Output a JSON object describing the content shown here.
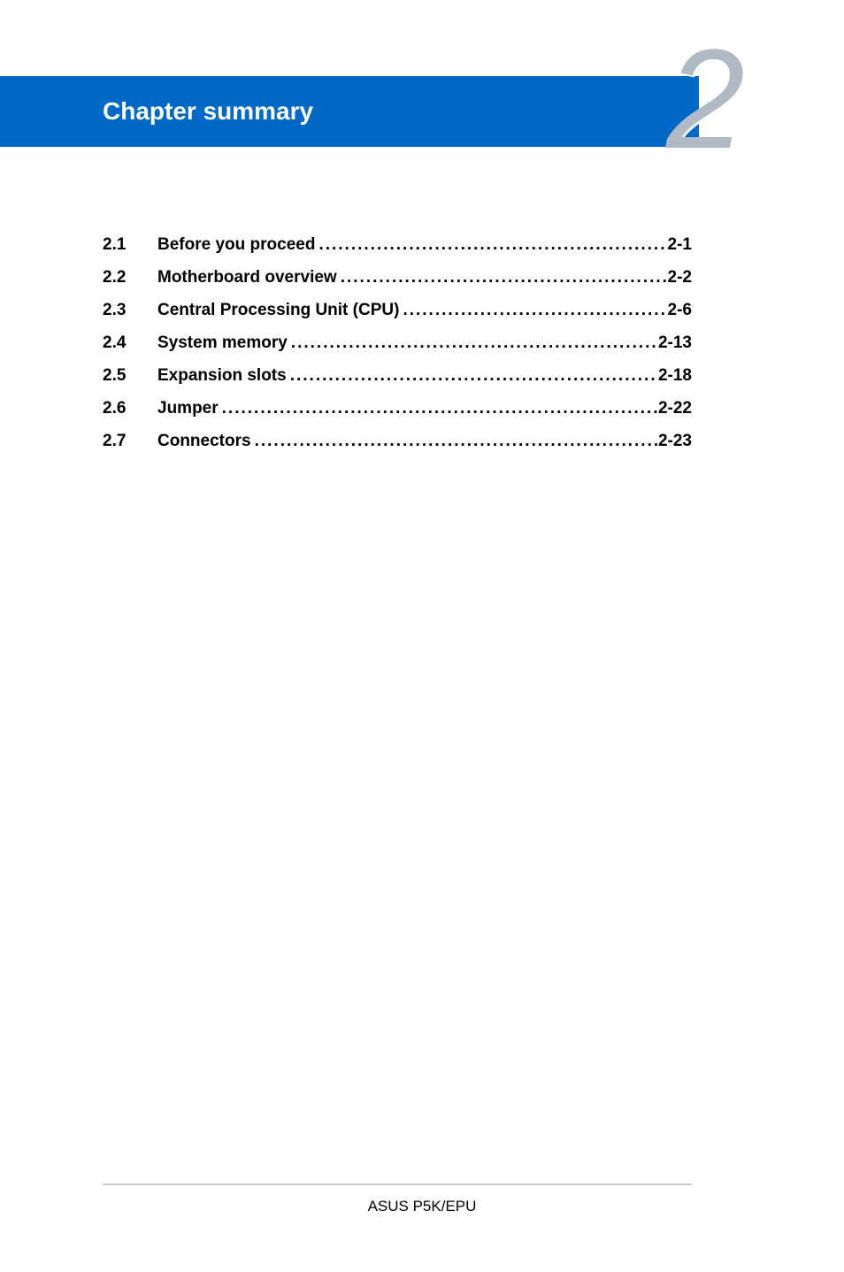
{
  "header": {
    "title": "Chapter summary",
    "band_color": "#0068c7",
    "title_color": "#ffffff",
    "title_fontsize": 28,
    "chapter_number": "2",
    "number_color": "#b0b9c4",
    "number_fontsize": 160
  },
  "toc": {
    "font_weight": "bold",
    "font_size": 19,
    "entries": [
      {
        "num": "2.1",
        "title": "Before you proceed",
        "page": "2-1"
      },
      {
        "num": "2.2",
        "title": "Motherboard overview",
        "page": "2-2"
      },
      {
        "num": "2.3",
        "title": "Central Processing Unit (CPU)",
        "page": "2-6"
      },
      {
        "num": "2.4",
        "title": "System memory",
        "page": "2-13"
      },
      {
        "num": "2.5",
        "title": "Expansion slots",
        "page": "2-18"
      },
      {
        "num": "2.6",
        "title": "Jumper",
        "page": "2-22"
      },
      {
        "num": "2.7",
        "title": "Connectors",
        "page": "2-23"
      }
    ]
  },
  "footer": {
    "text": "ASUS P5K/EPU",
    "rule_color": "#c9c9c9"
  },
  "page_background": "#ffffff"
}
